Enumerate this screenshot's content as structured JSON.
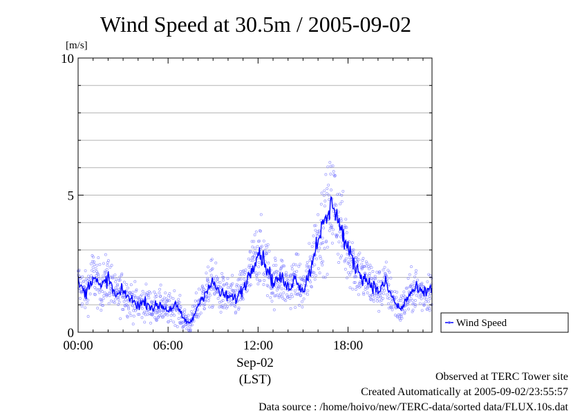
{
  "chart_data": {
    "type": "line",
    "title": "Wind Speed at 30.5m / 2005-09-02",
    "ylabel": "[m/s]",
    "xlabel": "(LST)",
    "date_label": "Sep-02",
    "x_tick_labels": [
      "00:00",
      "06:00",
      "12:00",
      "18:00"
    ],
    "x_ticks_hours": [
      0,
      6,
      12,
      18
    ],
    "x_range_hours": [
      0,
      23.6
    ],
    "y_tick_labels": [
      "0",
      "5",
      "10"
    ],
    "y_ticks": [
      0,
      5,
      10
    ],
    "ylim": [
      0,
      10
    ],
    "grid": true,
    "legend_position": "right",
    "series": [
      {
        "name": "Wind Speed",
        "color": "#0000ff",
        "sample_color": "#7777ff",
        "x_hours": [
          0,
          0.5,
          1,
          1.5,
          2,
          2.5,
          3,
          3.5,
          4,
          4.5,
          5,
          5.5,
          6,
          6.5,
          7,
          7.5,
          8,
          8.5,
          9,
          9.5,
          10,
          10.5,
          11,
          11.5,
          12,
          12.5,
          13,
          13.5,
          14,
          14.5,
          15,
          15.5,
          16,
          16.5,
          17,
          17.5,
          18,
          18.5,
          19,
          19.5,
          20,
          20.5,
          21,
          21.5,
          22,
          22.5,
          23,
          23.5
        ],
        "values": [
          1.8,
          1.4,
          2.1,
          1.6,
          2.0,
          1.3,
          1.5,
          1.2,
          1.0,
          1.1,
          0.9,
          1.0,
          0.8,
          1.0,
          0.5,
          0.3,
          1.0,
          1.5,
          1.8,
          1.4,
          1.3,
          1.2,
          1.6,
          2.2,
          3.0,
          2.5,
          1.8,
          2.0,
          1.6,
          2.0,
          1.5,
          2.3,
          3.5,
          4.0,
          4.8,
          3.8,
          3.0,
          2.4,
          2.0,
          1.8,
          1.5,
          1.8,
          1.2,
          0.8,
          1.3,
          1.6,
          1.4,
          1.6
        ]
      }
    ]
  },
  "footer": {
    "observed": "Observed at TERC Tower site",
    "created": "Created Automatically at 2005-09-02/23:55:57",
    "source": "Data source : /home/hoivo/new/TERC-data/sorted  data/FLUX.10s.dat"
  }
}
